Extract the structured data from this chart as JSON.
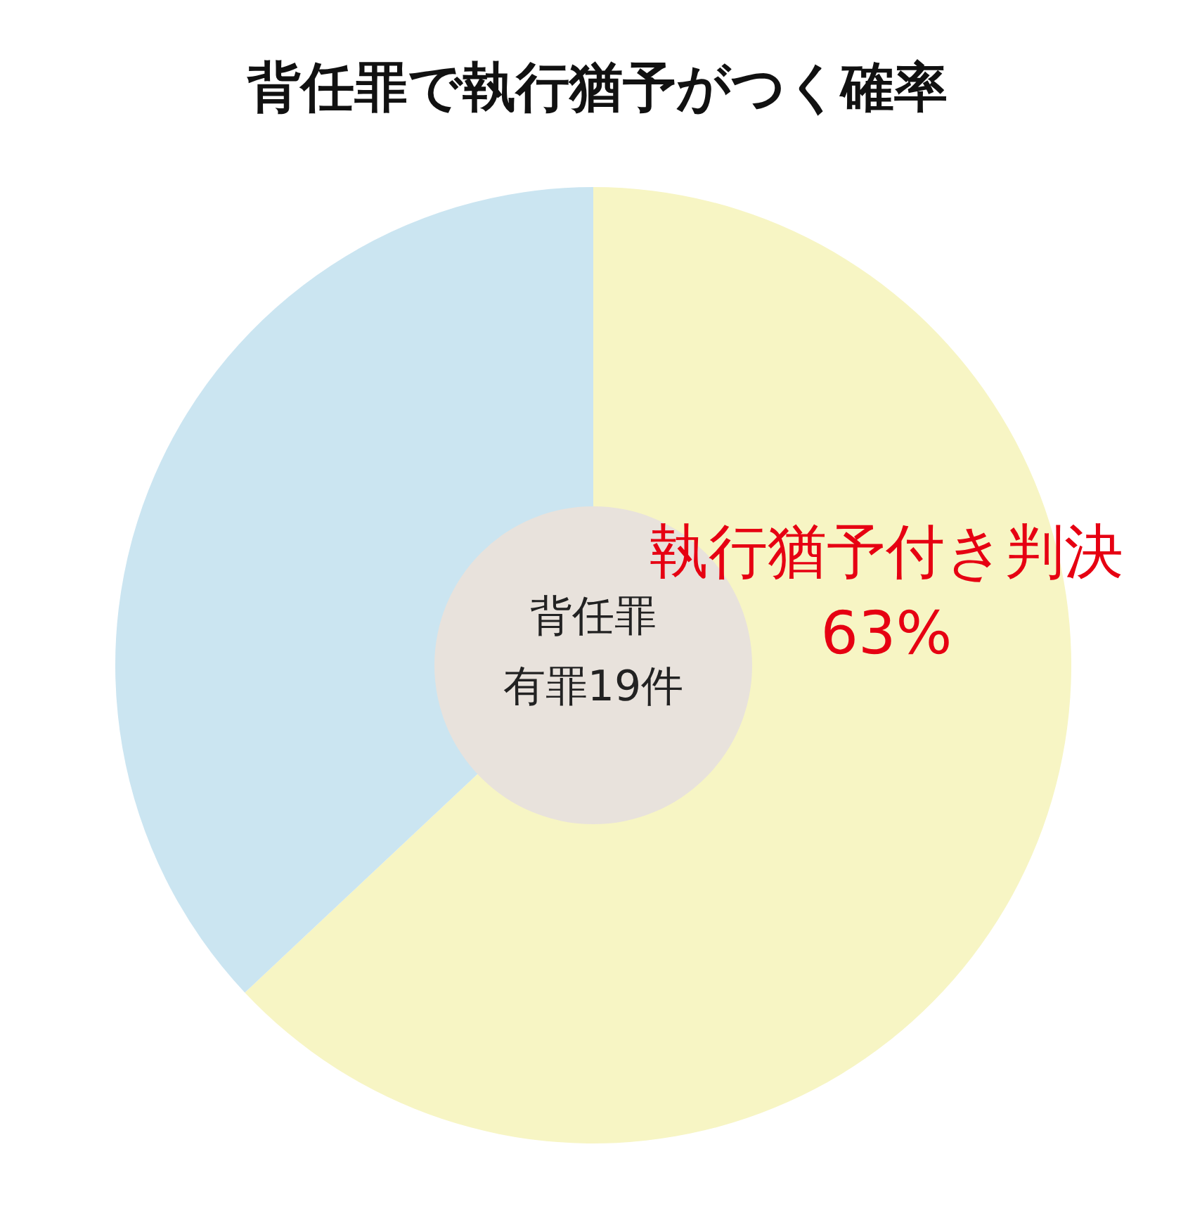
{
  "chart_data": {
    "type": "donut",
    "title": "背任罪で執行猶予がつく確率",
    "categories": [
      "執行猶予付き判決",
      null
    ],
    "values": [
      63,
      37
    ],
    "colors": [
      "#f7f5c4",
      "#cbe5f1"
    ],
    "value_labels": [
      "63%",
      null
    ],
    "annotations": [
      "背任罪",
      "有罪19件"
    ]
  }
}
